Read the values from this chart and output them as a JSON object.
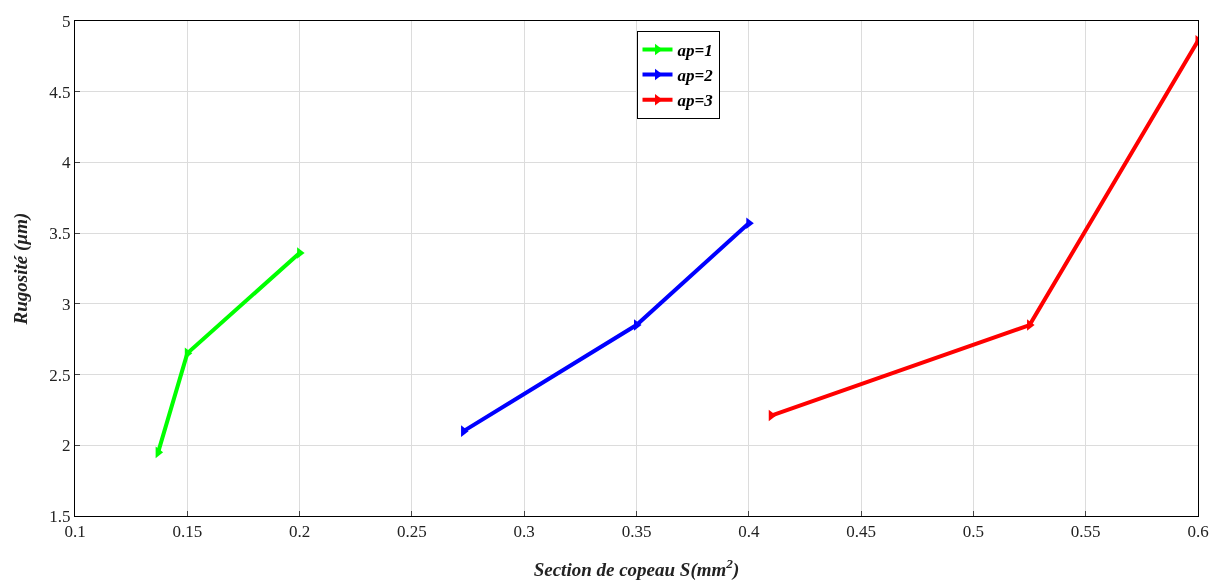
{
  "chart_data": {
    "type": "line",
    "xlabel": "Section de copeau S(mm$^{2}$)",
    "ylabel": "Rugosité (µm)",
    "xlim": [
      0.1,
      0.6
    ],
    "xticks": [
      0.1,
      0.15,
      0.2,
      0.25,
      0.3,
      0.35,
      0.4,
      0.45,
      0.5,
      0.55,
      0.6
    ],
    "ylim": [
      1.5,
      5
    ],
    "yticks": [
      1.5,
      2,
      2.5,
      3,
      3.5,
      4,
      4.5,
      5
    ],
    "grid": true,
    "legend": "top",
    "marker": "triangle",
    "line_style": "solid",
    "series": [
      {
        "name": "ap=1",
        "color": "#00ff00",
        "x": [
          0.137,
          0.15,
          0.2
        ],
        "values": [
          1.95,
          2.65,
          3.36
        ]
      },
      {
        "name": "ap=2",
        "color": "#0000ff",
        "x": [
          0.273,
          0.35,
          0.4
        ],
        "values": [
          2.1,
          2.85,
          3.57
        ]
      },
      {
        "name": "ap=3",
        "color": "#ff0000",
        "x": [
          0.41,
          0.525,
          0.6
        ],
        "values": [
          2.21,
          2.85,
          4.86
        ]
      }
    ]
  }
}
